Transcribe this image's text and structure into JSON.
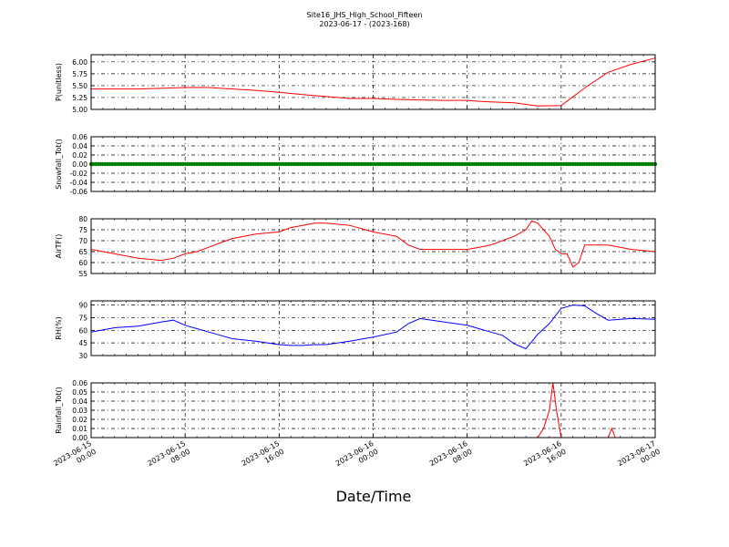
{
  "figure": {
    "title_line1": "Site16_JHS_High_School_Fifteen",
    "title_line2": "2023-06-17 - (2023-168)",
    "xlabel": "Date/Time",
    "x_ticks": [
      "2023-06-15\n00:00",
      "2023-06-15\n08:00",
      "2023-06-15\n16:00",
      "2023-06-16\n00:00",
      "2023-06-16\n08:00",
      "2023-06-16\n16:00",
      "2023-06-17\n00:00"
    ]
  },
  "chart_data": [
    {
      "type": "line",
      "ylabel": "P(unitless)",
      "ylim": [
        5.0,
        6.15
      ],
      "yticks": [
        "5.00",
        "5.25",
        "5.50",
        "5.75",
        "6.00"
      ],
      "grid": true,
      "color": "#ff0000",
      "series": [
        {
          "x": [
            0,
            4,
            8,
            10,
            12,
            14,
            16,
            18,
            20,
            22,
            24,
            26,
            28,
            30,
            32,
            33,
            34,
            35,
            36,
            38,
            40,
            42,
            44,
            46,
            48
          ],
          "y": [
            5.43,
            5.43,
            5.46,
            5.46,
            5.43,
            5.4,
            5.36,
            5.31,
            5.27,
            5.23,
            5.23,
            5.21,
            5.2,
            5.19,
            5.19,
            5.17,
            5.16,
            5.15,
            5.14,
            5.07,
            5.08,
            5.45,
            5.78,
            5.95,
            6.08
          ]
        }
      ]
    },
    {
      "type": "scatter",
      "ylabel": "Snowfall_Tot()",
      "ylim": [
        -0.06,
        0.06
      ],
      "yticks": [
        "-0.06",
        "-0.04",
        "-0.02",
        "0.00",
        "0.02",
        "0.04",
        "0.06"
      ],
      "grid": true,
      "color": "#008000",
      "series": [
        {
          "x_start": 0,
          "x_end": 48,
          "value": 0.0
        }
      ]
    },
    {
      "type": "line",
      "ylabel": "AirTF()",
      "ylim": [
        55,
        80
      ],
      "yticks": [
        "55",
        "60",
        "65",
        "70",
        "75",
        "80"
      ],
      "grid": true,
      "color": "#ff0000",
      "series": [
        {
          "x": [
            0,
            2,
            4,
            6,
            7,
            8,
            9,
            10,
            11,
            12,
            14,
            16,
            17,
            18,
            19,
            20,
            22,
            24,
            26,
            27,
            28,
            29,
            30,
            32,
            33,
            34,
            35,
            36,
            37,
            37.5,
            38,
            38.5,
            39,
            39.5,
            40,
            40.5,
            41,
            41.5,
            42,
            44,
            46,
            48
          ],
          "y": [
            66,
            64,
            62,
            61,
            62,
            64,
            65,
            67,
            69,
            71,
            73,
            74,
            76,
            77,
            78,
            78,
            77,
            74,
            72,
            68,
            66,
            66,
            66,
            66,
            67,
            68,
            70,
            72,
            75,
            79,
            78,
            75,
            72,
            66,
            64,
            64,
            58,
            60,
            68,
            68,
            66,
            65
          ]
        }
      ]
    },
    {
      "type": "line",
      "ylabel": "RH(%)",
      "ylim": [
        30,
        95
      ],
      "yticks": [
        "30",
        "45",
        "60",
        "75",
        "90"
      ],
      "grid": true,
      "color": "#0000ff",
      "series": [
        {
          "x": [
            0,
            2,
            4,
            6,
            7,
            8,
            9,
            10,
            11,
            12,
            14,
            16,
            17,
            18,
            19,
            20,
            22,
            24,
            26,
            27,
            28,
            29,
            30,
            32,
            33,
            34,
            35,
            36,
            37,
            38,
            39,
            40,
            41,
            42,
            43,
            44,
            46,
            48
          ],
          "y": [
            58,
            63,
            65,
            70,
            72,
            66,
            62,
            58,
            54,
            50,
            47,
            43,
            42,
            42,
            43,
            43,
            47,
            52,
            58,
            68,
            74,
            72,
            70,
            66,
            62,
            58,
            54,
            44,
            38,
            55,
            68,
            86,
            90,
            89,
            80,
            72,
            74,
            73
          ]
        }
      ]
    },
    {
      "type": "line",
      "ylabel": "Rainfall_Tot()",
      "ylim": [
        0.0,
        0.06
      ],
      "yticks": [
        "0.00",
        "0.01",
        "0.02",
        "0.03",
        "0.04",
        "0.05",
        "0.06"
      ],
      "grid": true,
      "color": "#ff0000",
      "series": [
        {
          "x": [
            0,
            38,
            38.5,
            39,
            39.3,
            39.6,
            40,
            44,
            44.3,
            44.6,
            48
          ],
          "y": [
            0,
            0,
            0.01,
            0.03,
            0.06,
            0.03,
            0,
            0,
            0.01,
            0,
            0
          ]
        }
      ]
    }
  ]
}
